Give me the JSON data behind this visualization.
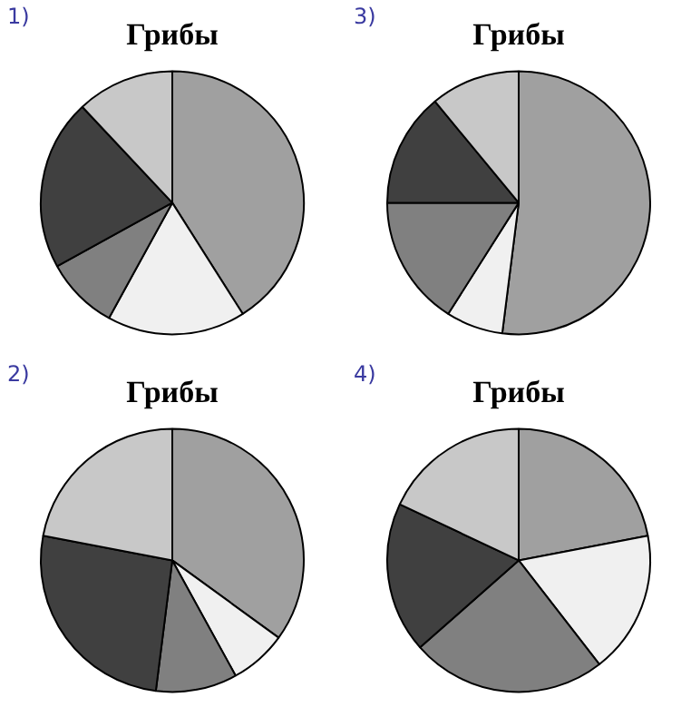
{
  "chart_data": [
    {
      "type": "pie",
      "title": "Грибы",
      "annotations": [
        "1)"
      ],
      "categories": [
        null,
        null,
        null,
        null,
        null
      ],
      "values": [
        41,
        17,
        9,
        21,
        12
      ],
      "colors": [
        "#a0a0a0",
        "#f0f0f0",
        "#808080",
        "#404040",
        "#c8c8c8"
      ],
      "legend": false
    },
    {
      "type": "pie",
      "title": "Грибы",
      "annotations": [
        "3)"
      ],
      "categories": [
        null,
        null,
        null,
        null,
        null
      ],
      "values": [
        52,
        7,
        16,
        14,
        11
      ],
      "colors": [
        "#a0a0a0",
        "#f0f0f0",
        "#808080",
        "#404040",
        "#c8c8c8"
      ],
      "legend": false
    },
    {
      "type": "pie",
      "title": "Грибы",
      "annotations": [
        "2)"
      ],
      "categories": [
        null,
        null,
        null,
        null,
        null
      ],
      "values": [
        35,
        7,
        10,
        26,
        22
      ],
      "colors": [
        "#a0a0a0",
        "#f0f0f0",
        "#808080",
        "#404040",
        "#c8c8c8"
      ],
      "legend": false
    },
    {
      "type": "pie",
      "title": "Грибы",
      "annotations": [
        "4)"
      ],
      "categories": [
        null,
        null,
        null,
        null,
        null
      ],
      "values": [
        22,
        17.5,
        24,
        18.5,
        18
      ],
      "colors": [
        "#a0a0a0",
        "#f0f0f0",
        "#808080",
        "#404040",
        "#c8c8c8"
      ],
      "legend": false
    }
  ]
}
